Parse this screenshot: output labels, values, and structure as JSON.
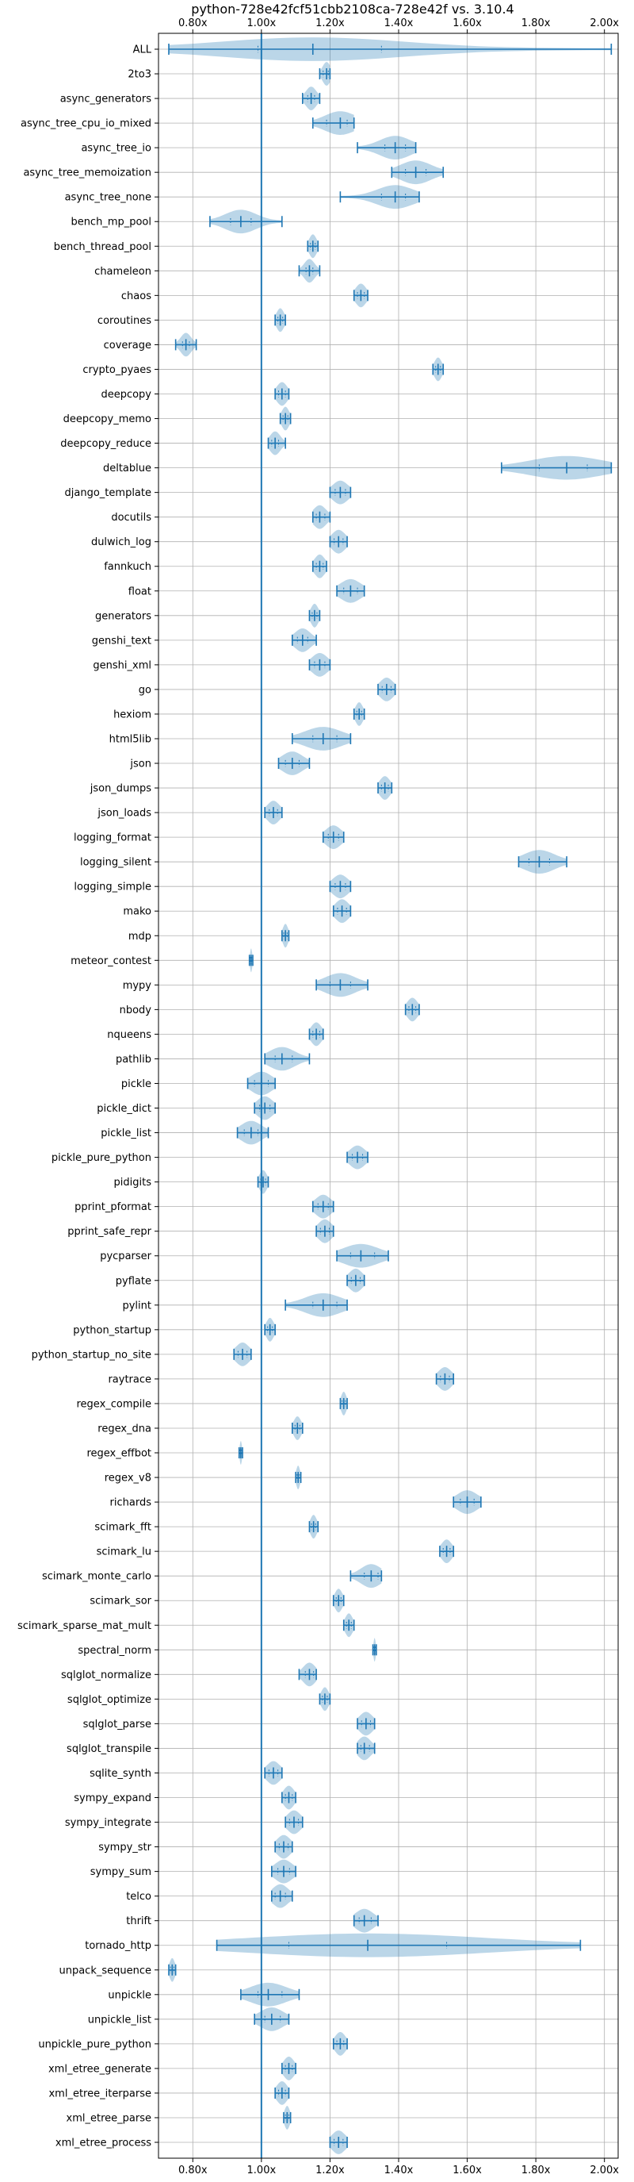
{
  "chart_data": {
    "type": "violin",
    "title": "python-728e42fcf51cbb2108ca-728e42f vs. 3.10.4",
    "orientation": "horizontal",
    "xlim": [
      0.7,
      2.04
    ],
    "xticks": [
      0.8,
      1.0,
      1.2,
      1.4,
      1.6,
      1.8,
      2.0
    ],
    "xtick_labels": [
      "0.80x",
      "1.00x",
      "1.20x",
      "1.40x",
      "1.60x",
      "1.80x",
      "2.00x"
    ],
    "xtick_positions": [
      "top",
      "bottom"
    ],
    "reference_line": 1.0,
    "grid": true,
    "color": "#1f77b4",
    "categories": [
      "ALL",
      "2to3",
      "async_generators",
      "async_tree_cpu_io_mixed",
      "async_tree_io",
      "async_tree_memoization",
      "async_tree_none",
      "bench_mp_pool",
      "bench_thread_pool",
      "chameleon",
      "chaos",
      "coroutines",
      "coverage",
      "crypto_pyaes",
      "deepcopy",
      "deepcopy_memo",
      "deepcopy_reduce",
      "deltablue",
      "django_template",
      "docutils",
      "dulwich_log",
      "fannkuch",
      "float",
      "generators",
      "genshi_text",
      "genshi_xml",
      "go",
      "hexiom",
      "html5lib",
      "json",
      "json_dumps",
      "json_loads",
      "logging_format",
      "logging_silent",
      "logging_simple",
      "mako",
      "mdp",
      "meteor_contest",
      "mypy",
      "nbody",
      "nqueens",
      "pathlib",
      "pickle",
      "pickle_dict",
      "pickle_list",
      "pickle_pure_python",
      "pidigits",
      "pprint_pformat",
      "pprint_safe_repr",
      "pycparser",
      "pyflate",
      "pylint",
      "python_startup",
      "python_startup_no_site",
      "raytrace",
      "regex_compile",
      "regex_dna",
      "regex_effbot",
      "regex_v8",
      "richards",
      "scimark_fft",
      "scimark_lu",
      "scimark_monte_carlo",
      "scimark_sor",
      "scimark_sparse_mat_mult",
      "spectral_norm",
      "sqlglot_normalize",
      "sqlglot_optimize",
      "sqlglot_parse",
      "sqlglot_transpile",
      "sqlite_synth",
      "sympy_expand",
      "sympy_integrate",
      "sympy_str",
      "sympy_sum",
      "telco",
      "thrift",
      "tornado_http",
      "unpack_sequence",
      "unpickle",
      "unpickle_list",
      "unpickle_pure_python",
      "xml_etree_generate",
      "xml_etree_iterparse",
      "xml_etree_parse",
      "xml_etree_process"
    ],
    "series": [
      {
        "min": 0.73,
        "max": 2.02,
        "median": 1.15,
        "q1": 0.99,
        "q3": 1.35
      },
      {
        "min": 1.17,
        "max": 1.2,
        "median": 1.19,
        "q1": 1.18,
        "q3": 1.195
      },
      {
        "min": 1.12,
        "max": 1.17,
        "median": 1.145,
        "q1": 1.135,
        "q3": 1.155
      },
      {
        "min": 1.15,
        "max": 1.27,
        "median": 1.23,
        "q1": 1.19,
        "q3": 1.25
      },
      {
        "min": 1.28,
        "max": 1.45,
        "median": 1.39,
        "q1": 1.36,
        "q3": 1.42
      },
      {
        "min": 1.38,
        "max": 1.53,
        "median": 1.45,
        "q1": 1.42,
        "q3": 1.48
      },
      {
        "min": 1.23,
        "max": 1.46,
        "median": 1.39,
        "q1": 1.35,
        "q3": 1.42
      },
      {
        "min": 0.85,
        "max": 1.06,
        "median": 0.94,
        "q1": 0.91,
        "q3": 0.97
      },
      {
        "min": 1.135,
        "max": 1.165,
        "median": 1.15,
        "q1": 1.143,
        "q3": 1.157
      },
      {
        "min": 1.11,
        "max": 1.17,
        "median": 1.14,
        "q1": 1.13,
        "q3": 1.15
      },
      {
        "min": 1.27,
        "max": 1.31,
        "median": 1.29,
        "q1": 1.28,
        "q3": 1.3
      },
      {
        "min": 1.04,
        "max": 1.07,
        "median": 1.055,
        "q1": 1.048,
        "q3": 1.062
      },
      {
        "min": 0.75,
        "max": 0.81,
        "median": 0.78,
        "q1": 0.77,
        "q3": 0.79
      },
      {
        "min": 1.5,
        "max": 1.53,
        "median": 1.515,
        "q1": 1.508,
        "q3": 1.522
      },
      {
        "min": 1.04,
        "max": 1.08,
        "median": 1.06,
        "q1": 1.05,
        "q3": 1.07
      },
      {
        "min": 1.055,
        "max": 1.085,
        "median": 1.07,
        "q1": 1.063,
        "q3": 1.077
      },
      {
        "min": 1.02,
        "max": 1.07,
        "median": 1.04,
        "q1": 1.03,
        "q3": 1.05
      },
      {
        "min": 1.7,
        "max": 2.02,
        "median": 1.89,
        "q1": 1.81,
        "q3": 1.95
      },
      {
        "min": 1.2,
        "max": 1.26,
        "median": 1.23,
        "q1": 1.215,
        "q3": 1.245
      },
      {
        "min": 1.15,
        "max": 1.2,
        "median": 1.17,
        "q1": 1.16,
        "q3": 1.185
      },
      {
        "min": 1.2,
        "max": 1.25,
        "median": 1.225,
        "q1": 1.212,
        "q3": 1.238
      },
      {
        "min": 1.15,
        "max": 1.19,
        "median": 1.17,
        "q1": 1.16,
        "q3": 1.18
      },
      {
        "min": 1.22,
        "max": 1.3,
        "median": 1.26,
        "q1": 1.24,
        "q3": 1.28
      },
      {
        "min": 1.14,
        "max": 1.17,
        "median": 1.155,
        "q1": 1.148,
        "q3": 1.162
      },
      {
        "min": 1.09,
        "max": 1.16,
        "median": 1.12,
        "q1": 1.105,
        "q3": 1.135
      },
      {
        "min": 1.14,
        "max": 1.2,
        "median": 1.17,
        "q1": 1.155,
        "q3": 1.185
      },
      {
        "min": 1.34,
        "max": 1.39,
        "median": 1.365,
        "q1": 1.352,
        "q3": 1.378
      },
      {
        "min": 1.27,
        "max": 1.3,
        "median": 1.285,
        "q1": 1.278,
        "q3": 1.292
      },
      {
        "min": 1.09,
        "max": 1.26,
        "median": 1.18,
        "q1": 1.15,
        "q3": 1.22
      },
      {
        "min": 1.05,
        "max": 1.14,
        "median": 1.09,
        "q1": 1.07,
        "q3": 1.11
      },
      {
        "min": 1.34,
        "max": 1.38,
        "median": 1.36,
        "q1": 1.35,
        "q3": 1.37
      },
      {
        "min": 1.01,
        "max": 1.06,
        "median": 1.035,
        "q1": 1.023,
        "q3": 1.047
      },
      {
        "min": 1.18,
        "max": 1.24,
        "median": 1.21,
        "q1": 1.195,
        "q3": 1.225
      },
      {
        "min": 1.75,
        "max": 1.89,
        "median": 1.81,
        "q1": 1.78,
        "q3": 1.84
      },
      {
        "min": 1.2,
        "max": 1.26,
        "median": 1.23,
        "q1": 1.215,
        "q3": 1.245
      },
      {
        "min": 1.21,
        "max": 1.26,
        "median": 1.235,
        "q1": 1.222,
        "q3": 1.248
      },
      {
        "min": 1.06,
        "max": 1.08,
        "median": 1.07,
        "q1": 1.065,
        "q3": 1.075
      },
      {
        "min": 0.965,
        "max": 0.975,
        "median": 0.97,
        "q1": 0.968,
        "q3": 0.972
      },
      {
        "min": 1.16,
        "max": 1.31,
        "median": 1.23,
        "q1": 1.2,
        "q3": 1.26
      },
      {
        "min": 1.42,
        "max": 1.46,
        "median": 1.44,
        "q1": 1.43,
        "q3": 1.45
      },
      {
        "min": 1.14,
        "max": 1.18,
        "median": 1.16,
        "q1": 1.15,
        "q3": 1.17
      },
      {
        "min": 1.01,
        "max": 1.14,
        "median": 1.06,
        "q1": 1.04,
        "q3": 1.09
      },
      {
        "min": 0.96,
        "max": 1.04,
        "median": 1.0,
        "q1": 0.98,
        "q3": 1.02
      },
      {
        "min": 0.98,
        "max": 1.04,
        "median": 1.01,
        "q1": 0.995,
        "q3": 1.025
      },
      {
        "min": 0.93,
        "max": 1.02,
        "median": 0.97,
        "q1": 0.95,
        "q3": 0.99
      },
      {
        "min": 1.25,
        "max": 1.31,
        "median": 1.28,
        "q1": 1.265,
        "q3": 1.295
      },
      {
        "min": 0.99,
        "max": 1.02,
        "median": 1.005,
        "q1": 0.998,
        "q3": 1.012
      },
      {
        "min": 1.15,
        "max": 1.21,
        "median": 1.18,
        "q1": 1.165,
        "q3": 1.195
      },
      {
        "min": 1.16,
        "max": 1.21,
        "median": 1.185,
        "q1": 1.172,
        "q3": 1.198
      },
      {
        "min": 1.22,
        "max": 1.37,
        "median": 1.29,
        "q1": 1.26,
        "q3": 1.33
      },
      {
        "min": 1.25,
        "max": 1.3,
        "median": 1.275,
        "q1": 1.262,
        "q3": 1.288
      },
      {
        "min": 1.07,
        "max": 1.25,
        "median": 1.18,
        "q1": 1.15,
        "q3": 1.22
      },
      {
        "min": 1.01,
        "max": 1.04,
        "median": 1.025,
        "q1": 1.018,
        "q3": 1.032
      },
      {
        "min": 0.92,
        "max": 0.97,
        "median": 0.945,
        "q1": 0.932,
        "q3": 0.958
      },
      {
        "min": 1.51,
        "max": 1.56,
        "median": 1.535,
        "q1": 1.522,
        "q3": 1.548
      },
      {
        "min": 1.23,
        "max": 1.25,
        "median": 1.24,
        "q1": 1.235,
        "q3": 1.245
      },
      {
        "min": 1.09,
        "max": 1.12,
        "median": 1.105,
        "q1": 1.098,
        "q3": 1.112
      },
      {
        "min": 0.935,
        "max": 0.945,
        "median": 0.94,
        "q1": 0.938,
        "q3": 0.942
      },
      {
        "min": 1.1,
        "max": 1.115,
        "median": 1.107,
        "q1": 1.104,
        "q3": 1.111
      },
      {
        "min": 1.56,
        "max": 1.64,
        "median": 1.6,
        "q1": 1.58,
        "q3": 1.62
      },
      {
        "min": 1.14,
        "max": 1.165,
        "median": 1.152,
        "q1": 1.146,
        "q3": 1.158
      },
      {
        "min": 1.52,
        "max": 1.56,
        "median": 1.54,
        "q1": 1.53,
        "q3": 1.55
      },
      {
        "min": 1.26,
        "max": 1.35,
        "median": 1.32,
        "q1": 1.3,
        "q3": 1.34
      },
      {
        "min": 1.21,
        "max": 1.24,
        "median": 1.225,
        "q1": 1.218,
        "q3": 1.232
      },
      {
        "min": 1.24,
        "max": 1.27,
        "median": 1.255,
        "q1": 1.248,
        "q3": 1.262
      },
      {
        "min": 1.325,
        "max": 1.335,
        "median": 1.33,
        "q1": 1.328,
        "q3": 1.332
      },
      {
        "min": 1.11,
        "max": 1.16,
        "median": 1.14,
        "q1": 1.128,
        "q3": 1.152
      },
      {
        "min": 1.17,
        "max": 1.2,
        "median": 1.185,
        "q1": 1.178,
        "q3": 1.192
      },
      {
        "min": 1.28,
        "max": 1.33,
        "median": 1.305,
        "q1": 1.292,
        "q3": 1.318
      },
      {
        "min": 1.28,
        "max": 1.33,
        "median": 1.3,
        "q1": 1.29,
        "q3": 1.315
      },
      {
        "min": 1.01,
        "max": 1.06,
        "median": 1.035,
        "q1": 1.022,
        "q3": 1.048
      },
      {
        "min": 1.06,
        "max": 1.1,
        "median": 1.08,
        "q1": 1.07,
        "q3": 1.09
      },
      {
        "min": 1.07,
        "max": 1.12,
        "median": 1.095,
        "q1": 1.082,
        "q3": 1.108
      },
      {
        "min": 1.04,
        "max": 1.09,
        "median": 1.065,
        "q1": 1.052,
        "q3": 1.078
      },
      {
        "min": 1.03,
        "max": 1.1,
        "median": 1.065,
        "q1": 1.048,
        "q3": 1.082
      },
      {
        "min": 1.03,
        "max": 1.09,
        "median": 1.055,
        "q1": 1.04,
        "q3": 1.07
      },
      {
        "min": 1.27,
        "max": 1.34,
        "median": 1.3,
        "q1": 1.285,
        "q3": 1.32
      },
      {
        "min": 0.87,
        "max": 1.93,
        "median": 1.31,
        "q1": 1.08,
        "q3": 1.54
      },
      {
        "min": 0.73,
        "max": 0.75,
        "median": 0.74,
        "q1": 0.735,
        "q3": 0.745
      },
      {
        "min": 0.94,
        "max": 1.11,
        "median": 1.02,
        "q1": 0.99,
        "q3": 1.06
      },
      {
        "min": 0.98,
        "max": 1.08,
        "median": 1.03,
        "q1": 1.01,
        "q3": 1.055
      },
      {
        "min": 1.21,
        "max": 1.25,
        "median": 1.23,
        "q1": 1.22,
        "q3": 1.24
      },
      {
        "min": 1.06,
        "max": 1.1,
        "median": 1.08,
        "q1": 1.07,
        "q3": 1.09
      },
      {
        "min": 1.04,
        "max": 1.08,
        "median": 1.06,
        "q1": 1.05,
        "q3": 1.07
      },
      {
        "min": 1.065,
        "max": 1.085,
        "median": 1.075,
        "q1": 1.07,
        "q3": 1.08
      },
      {
        "min": 1.2,
        "max": 1.25,
        "median": 1.225,
        "q1": 1.212,
        "q3": 1.238
      }
    ]
  }
}
